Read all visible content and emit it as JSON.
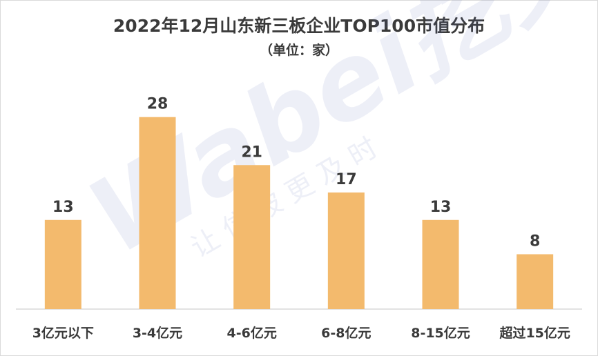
{
  "chart_data": {
    "type": "bar",
    "title": "2022年12月山东新三板企业TOP100市值分布",
    "subtitle": "（单位：家）",
    "categories": [
      "3亿元以下",
      "3-4亿元",
      "4-6亿元",
      "6-8亿元",
      "8-15亿元",
      "超过15亿元"
    ],
    "values": [
      13,
      28,
      21,
      17,
      13,
      8
    ],
    "ylim": [
      0,
      33
    ],
    "grid": false,
    "bar_color": "#f3ba6d",
    "axis_color": "#d9d9d9",
    "label_color": "#3a3a3a"
  },
  "watermark": {
    "brand": "Wabei挖贝",
    "slogan": "让 信 披 更 及 时"
  }
}
